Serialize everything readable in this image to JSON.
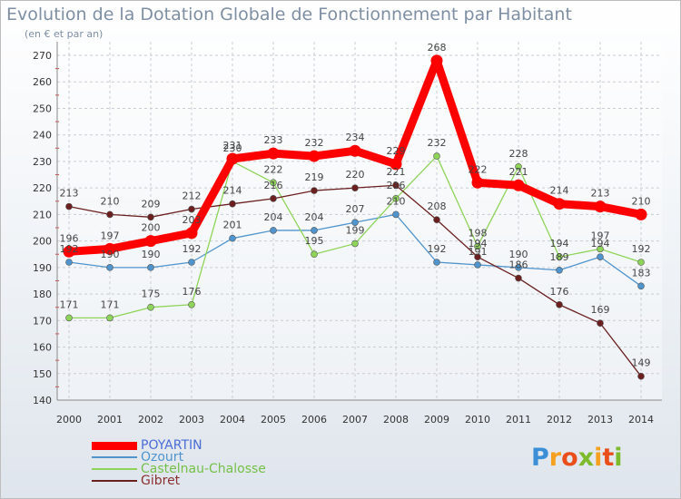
{
  "header": {
    "title": "Evolution de la Dotation Globale de Fonctionnement par Habitant",
    "subtitle": "(en € et par an)"
  },
  "logo": {
    "text": "Proxiti",
    "colors": [
      "#3a8fd6",
      "#f5a01e",
      "#e94e1b",
      "#7dbb2c",
      "#f5a01e",
      "#e94e1b",
      "#7dbb2c"
    ]
  },
  "chart_data": {
    "type": "line",
    "x": [
      "2000",
      "2001",
      "2002",
      "2003",
      "2004",
      "2005",
      "2006",
      "2007",
      "2008",
      "2009",
      "2010",
      "2011",
      "2012",
      "2013",
      "2014"
    ],
    "ylim": [
      140,
      270
    ],
    "yticks": [
      140,
      150,
      160,
      170,
      180,
      190,
      200,
      210,
      220,
      230,
      240,
      250,
      260,
      270
    ],
    "grid": true,
    "legend_position": "bottom-left",
    "series": [
      {
        "name": "POYARTIN",
        "color": "#ff0000",
        "values": [
          196,
          197,
          200,
          203,
          231,
          233,
          232,
          234,
          229,
          268,
          222,
          221,
          214,
          213,
          210
        ],
        "labels": [
          "196",
          "197",
          "200",
          "203",
          "231",
          "233",
          "232",
          "234",
          "229",
          "268",
          "222",
          "221",
          "214",
          "213",
          "210"
        ]
      },
      {
        "name": "Ozourt",
        "color": "#4f94cd",
        "values": [
          192,
          190,
          190,
          192,
          201,
          204,
          204,
          207,
          210,
          192,
          191,
          190,
          189,
          194,
          183
        ],
        "labels": [
          "192",
          "190",
          "190",
          "192",
          "201",
          "204",
          "204",
          "207",
          "210",
          "192",
          "191",
          "190",
          "189",
          "194",
          "183"
        ]
      },
      {
        "name": "Castelnau-Chalosse",
        "color": "#8fd45a",
        "values": [
          171,
          171,
          175,
          176,
          230,
          222,
          195,
          199,
          216,
          232,
          198,
          228,
          194,
          197,
          192
        ],
        "labels": [
          "171",
          "171",
          "175",
          "176",
          "230",
          "222",
          "195",
          "199",
          "216",
          "232",
          "198",
          "228",
          "194",
          "197",
          "192"
        ]
      },
      {
        "name": "Gibret",
        "color": "#6b1f1f",
        "values": [
          213,
          210,
          209,
          212,
          214,
          216,
          219,
          220,
          221,
          208,
          194,
          186,
          176,
          169,
          149
        ],
        "labels": [
          "213",
          "210",
          "209",
          "212",
          "214",
          "216",
          "219",
          "220",
          "221",
          "208",
          "194",
          "186",
          "176",
          "169",
          "149"
        ]
      }
    ]
  }
}
